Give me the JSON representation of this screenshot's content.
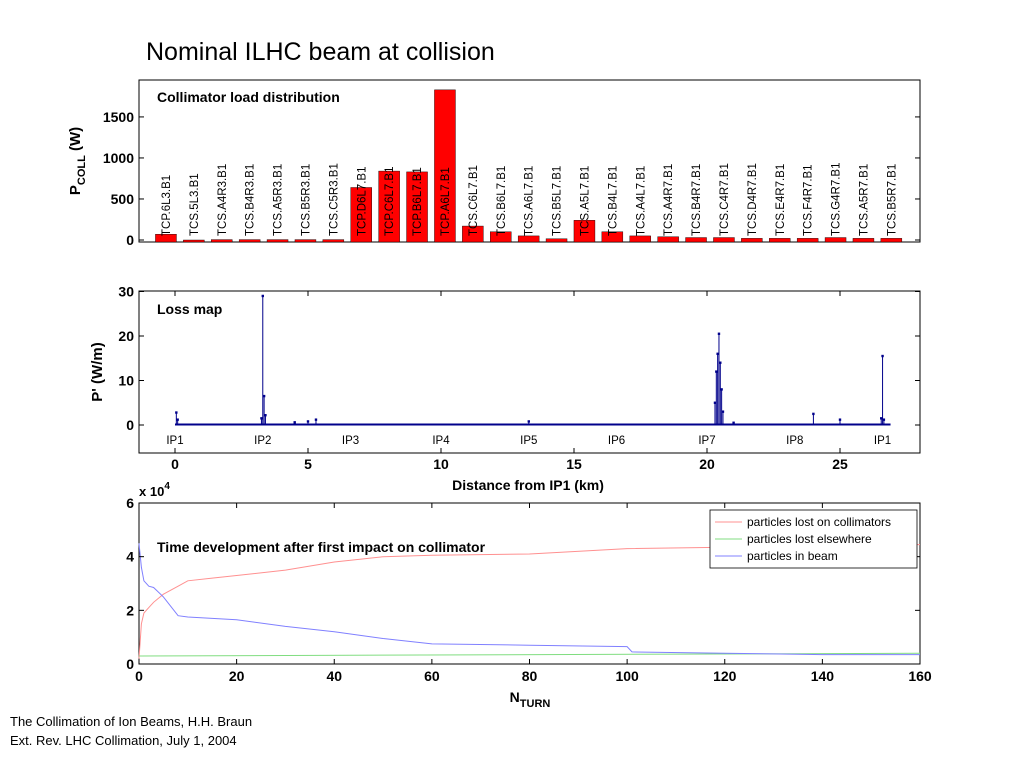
{
  "slide": {
    "title": "Nominal ILHC beam at collision",
    "footer_line1": "The Collimation of Ion Beams, H.H. Braun",
    "footer_line2": "Ext. Rev. LHC Collimation, July 1, 2004"
  },
  "colors": {
    "bar": "#ff0000",
    "loss": "#00008b",
    "collimators": "#ff9090",
    "elsewhere": "#80dd80",
    "beam": "#8080ff"
  },
  "chart_data": [
    {
      "type": "bar",
      "title": "Collimator load distribution",
      "ylabel_main": "P",
      "ylabel_sub": "COLL",
      "ylabel_unit": " (W)",
      "ylim": [
        0,
        1950
      ],
      "yticks": [
        0,
        500,
        1000,
        1500
      ],
      "categories": [
        "TCP.6L3.B1",
        "TCS.5L3.B1",
        "TCS.A4R3.B1",
        "TCS.B4R3.B1",
        "TCS.A5R3.B1",
        "TCS.B5R3.B1",
        "TCS.C5R3.B1",
        "TCP.D6L7.B1",
        "TCP.C6L7.B1",
        "TCP.B6L7.B1",
        "TCP.A6L7.B1",
        "TCS.C6L7.B1",
        "TCS.B6L7.B1",
        "TCS.A6L7.B1",
        "TCS.B5L7.B1",
        "TCS.A5L7.B1",
        "TCS.B4L7.B1",
        "TCS.A4L7.B1",
        "TCS.A4R7.B1",
        "TCS.B4R7.B1",
        "TCS.C4R7.B1",
        "TCS.D4R7.B1",
        "TCS.E4R7.B1",
        "TCS.F4R7.B1",
        "TCS.G4R7.B1",
        "TCS.A5R7.B1",
        "TCS.B5R7.B1"
      ],
      "values": [
        70,
        0,
        5,
        5,
        5,
        5,
        5,
        640,
        840,
        830,
        1830,
        170,
        100,
        50,
        15,
        240,
        100,
        50,
        40,
        30,
        30,
        20,
        20,
        20,
        30,
        20,
        20
      ]
    },
    {
      "type": "line",
      "title": "Loss map",
      "ylabel": "P' (W/m)",
      "xlabel": "Distance from IP1 (km)",
      "xlim": [
        0,
        28
      ],
      "ylim": [
        0,
        30
      ],
      "xticks": [
        0,
        5,
        10,
        15,
        20,
        25
      ],
      "yticks": [
        0,
        10,
        20,
        30
      ],
      "ip_labels": [
        {
          "label": "IP1",
          "x": 0
        },
        {
          "label": "IP2",
          "x": 3.3
        },
        {
          "label": "IP3",
          "x": 6.6
        },
        {
          "label": "IP4",
          "x": 10
        },
        {
          "label": "IP5",
          "x": 13.3
        },
        {
          "label": "IP6",
          "x": 16.6
        },
        {
          "label": "IP7",
          "x": 20
        },
        {
          "label": "IP8",
          "x": 23.3
        },
        {
          "label": "IP1",
          "x": 26.6
        }
      ],
      "spikes": [
        {
          "x": 0.05,
          "y": 2.8
        },
        {
          "x": 0.1,
          "y": 1.2
        },
        {
          "x": 3.25,
          "y": 1.5
        },
        {
          "x": 3.3,
          "y": 29
        },
        {
          "x": 3.35,
          "y": 6.5
        },
        {
          "x": 3.4,
          "y": 2.2
        },
        {
          "x": 4.5,
          "y": 0.6
        },
        {
          "x": 5.0,
          "y": 0.8
        },
        {
          "x": 5.3,
          "y": 1.2
        },
        {
          "x": 13.3,
          "y": 0.8
        },
        {
          "x": 20.3,
          "y": 5
        },
        {
          "x": 20.35,
          "y": 12
        },
        {
          "x": 20.4,
          "y": 16
        },
        {
          "x": 20.45,
          "y": 20.5
        },
        {
          "x": 20.5,
          "y": 14
        },
        {
          "x": 20.55,
          "y": 8
        },
        {
          "x": 20.6,
          "y": 3
        },
        {
          "x": 21.0,
          "y": 0.5
        },
        {
          "x": 24.0,
          "y": 2.5
        },
        {
          "x": 25.0,
          "y": 1.2
        },
        {
          "x": 26.55,
          "y": 1.5
        },
        {
          "x": 26.6,
          "y": 15.5
        },
        {
          "x": 26.65,
          "y": 1.2
        }
      ]
    },
    {
      "type": "line",
      "title": "Time development after first impact on collimator",
      "xlabel_main": "N",
      "xlabel_sub": "TURN",
      "yexp_label": "x 10",
      "yexp_power": "4",
      "xlim": [
        0,
        160
      ],
      "ylim": [
        0,
        6
      ],
      "xticks": [
        0,
        20,
        40,
        60,
        80,
        100,
        120,
        140,
        160
      ],
      "yticks": [
        0,
        2,
        4,
        6
      ],
      "series": [
        {
          "name": "particles lost on collimators",
          "x": [
            0,
            0.5,
            1,
            2,
            3,
            5,
            8,
            10,
            15,
            20,
            30,
            40,
            50,
            60,
            80,
            100,
            120,
            140,
            160
          ],
          "y": [
            0.2,
            1.5,
            1.9,
            2.1,
            2.3,
            2.6,
            2.9,
            3.1,
            3.2,
            3.3,
            3.5,
            3.8,
            4.0,
            4.05,
            4.1,
            4.3,
            4.35,
            4.45,
            4.45
          ]
        },
        {
          "name": "particles lost elsewhere",
          "x": [
            0,
            160
          ],
          "y": [
            0.3,
            0.4
          ]
        },
        {
          "name": "particles in beam",
          "x": [
            0,
            0.5,
            1,
            2,
            3,
            5,
            8,
            10,
            15,
            20,
            30,
            40,
            50,
            60,
            80,
            100,
            101,
            120,
            140,
            160
          ],
          "y": [
            4.5,
            3.6,
            3.1,
            2.9,
            2.85,
            2.5,
            1.8,
            1.75,
            1.7,
            1.65,
            1.4,
            1.2,
            0.95,
            0.75,
            0.7,
            0.65,
            0.45,
            0.4,
            0.35,
            0.35
          ]
        }
      ]
    }
  ]
}
